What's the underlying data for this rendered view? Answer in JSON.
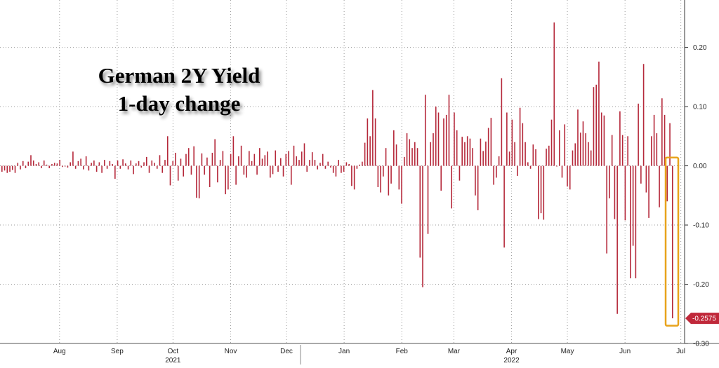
{
  "chart_data": {
    "type": "bar",
    "title": "German 2Y Yield",
    "subtitle": "1-day change",
    "xlabel": "",
    "ylabel": "",
    "ylim": [
      -0.3,
      0.28
    ],
    "grid": true,
    "grid_style": "dotted",
    "bar_color": "#b5283a",
    "highlight_color": "#e8a31c",
    "last_value_label": "-0.2575",
    "last_value_color": "#c0283a",
    "y_ticks": [
      {
        "value": 0.2,
        "label": "0.20"
      },
      {
        "value": 0.1,
        "label": "0.10"
      },
      {
        "value": 0.0,
        "label": "0.00"
      },
      {
        "value": -0.1,
        "label": "-0.10"
      },
      {
        "value": -0.2,
        "label": "-0.20"
      },
      {
        "value": -0.3,
        "label": "-0.30"
      }
    ],
    "x_period_start": "2021-07-14",
    "x_month_labels": [
      {
        "label": "Aug",
        "date": "2021-08-15"
      },
      {
        "label": "Sep",
        "date": "2021-09-15"
      },
      {
        "label": "Oct",
        "date": "2021-10-15"
      },
      {
        "label": "Nov",
        "date": "2021-11-15"
      },
      {
        "label": "Dec",
        "date": "2021-12-15"
      },
      {
        "label": "Jan",
        "date": "2022-01-15"
      },
      {
        "label": "Feb",
        "date": "2022-02-15"
      },
      {
        "label": "Mar",
        "date": "2022-03-15"
      },
      {
        "label": "Apr",
        "date": "2022-04-15"
      },
      {
        "label": "May",
        "date": "2022-05-15"
      },
      {
        "label": "Jun",
        "date": "2022-06-15"
      },
      {
        "label": "Jul",
        "date": "2022-07-15"
      }
    ],
    "x_year_labels": [
      {
        "label": "2021",
        "date": "2021-10-15"
      },
      {
        "label": "2022",
        "date": "2022-04-15"
      }
    ],
    "values": [
      -0.01,
      -0.008,
      -0.012,
      -0.01,
      -0.007,
      -0.012,
      0.005,
      -0.006,
      0.008,
      -0.004,
      0.007,
      0.018,
      0.009,
      0.003,
      0.006,
      -0.004,
      0.009,
      0.002,
      -0.004,
      0.003,
      0.005,
      0.004,
      0.01,
      -0.002,
      0.0,
      -0.003,
      0.006,
      0.024,
      -0.005,
      0.008,
      0.012,
      -0.006,
      0.016,
      -0.008,
      0.005,
      0.009,
      -0.01,
      0.006,
      -0.012,
      0.01,
      -0.005,
      0.008,
      0.003,
      -0.022,
      0.009,
      -0.005,
      0.011,
      0.004,
      -0.006,
      0.009,
      -0.014,
      0.004,
      0.008,
      -0.003,
      0.006,
      0.015,
      -0.012,
      0.009,
      0.005,
      -0.005,
      0.018,
      -0.012,
      0.01,
      0.05,
      -0.033,
      0.008,
      0.022,
      -0.025,
      0.012,
      -0.018,
      0.02,
      0.03,
      -0.015,
      0.033,
      -0.054,
      -0.055,
      0.021,
      -0.015,
      0.014,
      -0.036,
      0.022,
      0.045,
      -0.028,
      0.01,
      0.025,
      -0.048,
      -0.04,
      0.02,
      0.05,
      -0.032,
      0.016,
      0.034,
      -0.015,
      -0.02,
      0.025,
      0.008,
      0.02,
      -0.015,
      0.03,
      0.012,
      0.018,
      0.024,
      -0.02,
      -0.014,
      0.026,
      -0.01,
      0.013,
      -0.018,
      0.02,
      0.025,
      -0.032,
      0.034,
      0.016,
      0.01,
      0.024,
      0.038,
      -0.01,
      0.01,
      0.023,
      0.01,
      -0.006,
      0.005,
      0.02,
      -0.005,
      0.007,
      -0.003,
      -0.012,
      -0.018,
      0.01,
      -0.012,
      -0.01,
      0.006,
      0.003,
      -0.034,
      -0.04,
      -0.005,
      0.002,
      0.007,
      0.039,
      0.08,
      0.05,
      0.128,
      0.08,
      -0.036,
      -0.045,
      -0.018,
      0.03,
      -0.05,
      -0.03,
      0.06,
      0.036,
      -0.04,
      -0.064,
      0.015,
      0.055,
      0.045,
      0.03,
      0.04,
      0.03,
      -0.155,
      -0.205,
      0.12,
      -0.115,
      0.04,
      0.055,
      0.1,
      0.09,
      -0.042,
      0.08,
      0.086,
      0.12,
      -0.072,
      0.09,
      0.06,
      -0.025,
      0.049,
      0.04,
      0.05,
      0.046,
      0.03,
      -0.05,
      -0.075,
      0.046,
      0.025,
      0.041,
      0.064,
      0.081,
      -0.032,
      -0.02,
      0.016,
      0.148,
      -0.138,
      0.09,
      0.024,
      0.078,
      0.04,
      -0.017,
      0.098,
      0.072,
      0.04,
      0.006,
      -0.005,
      0.036,
      0.028,
      -0.09,
      -0.08,
      -0.091,
      0.029,
      0.034,
      0.078,
      0.242,
      0.0,
      0.06,
      -0.02,
      0.07,
      -0.035,
      -0.04,
      0.026,
      0.038,
      0.095,
      0.056,
      0.075,
      0.055,
      0.04,
      0.026,
      0.133,
      0.137,
      0.176,
      0.09,
      0.085,
      -0.148,
      -0.055,
      0.052,
      -0.09,
      -0.25,
      0.092,
      0.052,
      -0.092,
      0.05,
      -0.19,
      -0.135,
      -0.19,
      0.105,
      -0.03,
      0.172,
      -0.045,
      -0.088,
      0.05,
      0.086,
      0.055,
      -0.07,
      0.114,
      0.086,
      -0.06,
      0.072,
      -0.2575
    ]
  }
}
